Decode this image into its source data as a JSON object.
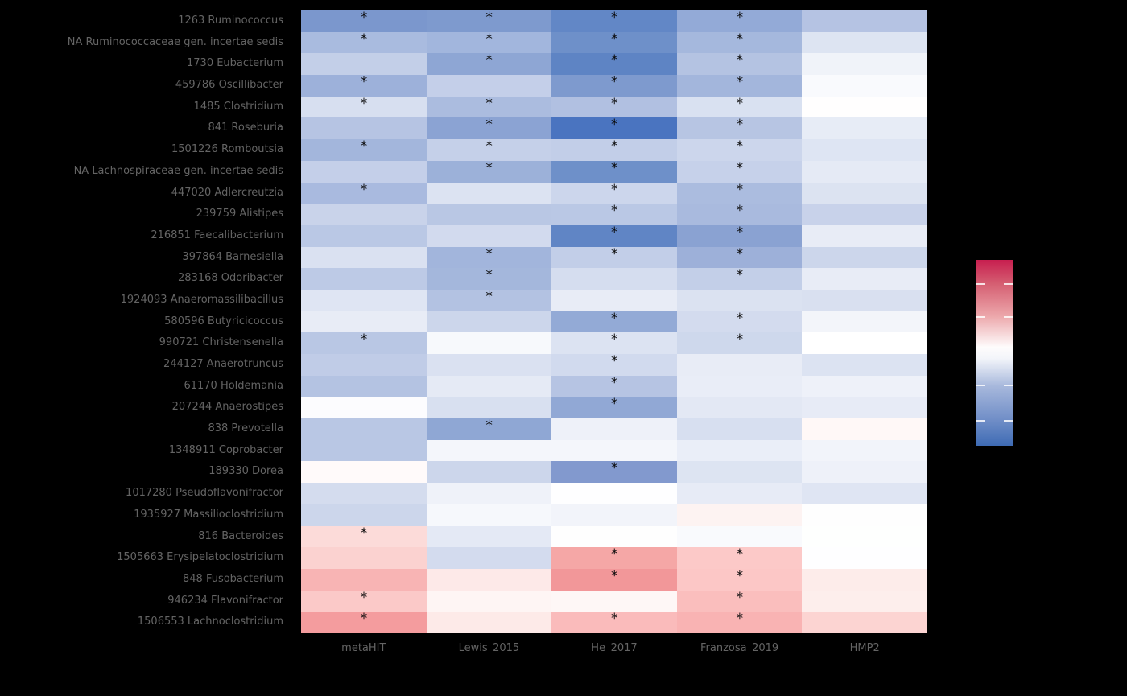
{
  "chart_data": {
    "type": "heatmap",
    "title": "",
    "xlabel": "",
    "ylabel": "",
    "significance_marker": "*",
    "columns": [
      "metaHIT",
      "Lewis_2015",
      "He_2017",
      "Franzosa_2019",
      "HMP2"
    ],
    "rows": [
      "1263 Ruminococcus",
      "NA Ruminococcaceae gen. incertae sedis",
      "1730 Eubacterium",
      "459786 Oscillibacter",
      "1485 Clostridium",
      "841 Roseburia",
      "1501226 Romboutsia",
      "NA Lachnospiraceae gen. incertae sedis",
      "447020 Adlercreutzia",
      "239759 Alistipes",
      "216851 Faecalibacterium",
      "397864 Barnesiella",
      "283168 Odoribacter",
      "1924093 Anaeromassilibacillus",
      "580596 Butyricicoccus",
      "990721 Christensenella",
      "244127 Anaerotruncus",
      "61170 Holdemania",
      "207244 Anaerostipes",
      "838 Prevotella",
      "1348911 Coprobacter",
      "189330 Dorea",
      "1017280 Pseudoflavonifractor",
      "1935927 Massilioclostridium",
      "816 Bacteroides",
      "1505663 Erysipelatoclostridium",
      "848 Fusobacterium",
      "946234 Flavonifractor",
      "1506553 Lachnoclostridium"
    ],
    "cell_colors": [
      [
        "#7b97cd",
        "#7e9ace",
        "#6287c6",
        "#93aad7",
        "#b5c3e3"
      ],
      [
        "#a9bbdf",
        "#a2b6dd",
        "#6e90c9",
        "#a5b8dd",
        "#dde4f2"
      ],
      [
        "#c3cfe8",
        "#8ea6d4",
        "#5e84c4",
        "#b4c3e2",
        "#f0f3f9"
      ],
      [
        "#9db1da",
        "#c4cfe9",
        "#7e9ace",
        "#a3b6dc",
        "#f9fafd"
      ],
      [
        "#d7dff0",
        "#abbcdf",
        "#b1c0e1",
        "#d9e1f1",
        "#fffefe"
      ],
      [
        "#b6c4e3",
        "#8ba3d3",
        "#4a74c0",
        "#b7c5e3",
        "#e7ecf6"
      ],
      [
        "#a3b6dc",
        "#c5d0e9",
        "#c2cee8",
        "#ccd6ec",
        "#dee5f3"
      ],
      [
        "#c4cfe9",
        "#9cb1d9",
        "#6e90c9",
        "#c6d1ea",
        "#e5eaf5"
      ],
      [
        "#a9badf",
        "#dce3f2",
        "#ccd6ec",
        "#abbcdf",
        "#dce3f1"
      ],
      [
        "#c9d3ea",
        "#b9c7e4",
        "#bac8e5",
        "#a9bade",
        "#c8d2ea"
      ],
      [
        "#bac8e5",
        "#d2daee",
        "#6085c5",
        "#8aa2d2",
        "#e8ecf6"
      ],
      [
        "#dae1f1",
        "#a2b5dc",
        "#c2cee8",
        "#9db0d9",
        "#ccd6eb"
      ],
      [
        "#bdcae6",
        "#a4b7dc",
        "#d5ddef",
        "#c3cfe8",
        "#e8ecf6"
      ],
      [
        "#dfe5f3",
        "#b3c2e2",
        "#e8ecf6",
        "#dbe2f1",
        "#d9e0f0"
      ],
      [
        "#e8ecf6",
        "#ccd6eb",
        "#93aad6",
        "#d3dbee",
        "#f3f5fa"
      ],
      [
        "#b9c7e4",
        "#f7f9fc",
        "#dce3f2",
        "#ced8ec",
        "#ffffff"
      ],
      [
        "#c0cce7",
        "#dae1f1",
        "#d1daee",
        "#e8ecf6",
        "#dce3f2"
      ],
      [
        "#b4c3e2",
        "#e5eaf5",
        "#b6c4e3",
        "#e9edf7",
        "#eef1f9"
      ],
      [
        "#fcfcfe",
        "#d8e0f0",
        "#91a8d5",
        "#e3e8f4",
        "#e7ebf6"
      ],
      [
        "#b9c7e4",
        "#8fa7d4",
        "#eef1f9",
        "#d7dff0",
        "#fff8f7"
      ],
      [
        "#b9c7e4",
        "#f4f6fb",
        "#f4f6fb",
        "#eaeef8",
        "#f2f4fa"
      ],
      [
        "#fffafa",
        "#ccd6eb",
        "#8299ce",
        "#dde4f2",
        "#eef1f9"
      ],
      [
        "#d4dcee",
        "#eff2f9",
        "#fefeff",
        "#e7ebf6",
        "#dfe5f3"
      ],
      [
        "#ccd6eb",
        "#f6f8fc",
        "#f2f4fa",
        "#fdf3f2",
        "#fefefe"
      ],
      [
        "#fcdbd9",
        "#e4e9f5",
        "#fefefe",
        "#f9fafd",
        "#fefffe"
      ],
      [
        "#fbd2d0",
        "#d3dbee",
        "#f5a7a6",
        "#fcc9c8",
        "#fefeff"
      ],
      [
        "#f8b4b4",
        "#fde9e8",
        "#f29799",
        "#fcc7c6",
        "#fdecea"
      ],
      [
        "#fbc9c8",
        "#fef5f4",
        "#fef7f6",
        "#fabebd",
        "#fdeeec"
      ],
      [
        "#f49c9e",
        "#fdeae8",
        "#fabbbb",
        "#f9b3b3",
        "#fcd4d2"
      ]
    ],
    "values_estimated_relative_to_legend_max": [
      [
        -0.63,
        -0.62,
        -0.8,
        -0.52,
        -0.34
      ],
      [
        -0.4,
        -0.44,
        -0.74,
        -0.43,
        -0.15
      ],
      [
        -0.28,
        -0.57,
        -0.82,
        -0.35,
        -0.08
      ],
      [
        -0.47,
        -0.27,
        -0.62,
        -0.44,
        -0.03
      ],
      [
        -0.19,
        -0.4,
        -0.37,
        -0.18,
        0.0
      ],
      [
        -0.34,
        -0.59,
        -0.95,
        -0.33,
        -0.11
      ],
      [
        -0.44,
        -0.26,
        -0.28,
        -0.24,
        -0.14
      ],
      [
        -0.27,
        -0.49,
        -0.74,
        -0.25,
        -0.12
      ],
      [
        -0.4,
        -0.16,
        -0.24,
        -0.4,
        -0.16
      ],
      [
        -0.25,
        -0.33,
        -0.32,
        -0.41,
        -0.26
      ],
      [
        -0.32,
        -0.21,
        -0.81,
        -0.6,
        -0.1
      ],
      [
        -0.17,
        -0.45,
        -0.28,
        -0.48,
        -0.24
      ],
      [
        -0.31,
        -0.43,
        -0.2,
        -0.28,
        -0.1
      ],
      [
        -0.15,
        -0.35,
        -0.1,
        -0.17,
        -0.18
      ],
      [
        -0.1,
        -0.24,
        -0.55,
        -0.21,
        -0.05
      ],
      [
        -0.33,
        -0.03,
        -0.15,
        -0.23,
        0.0
      ],
      [
        -0.3,
        -0.17,
        -0.22,
        -0.1,
        -0.15
      ],
      [
        -0.35,
        -0.12,
        -0.34,
        -0.09,
        -0.07
      ],
      [
        -0.01,
        -0.18,
        -0.56,
        -0.13,
        -0.11
      ],
      [
        -0.33,
        -0.57,
        -0.07,
        -0.19,
        0.02
      ],
      [
        -0.33,
        -0.05,
        -0.05,
        -0.09,
        -0.06
      ],
      [
        0.01,
        -0.24,
        -0.66,
        -0.15,
        -0.07
      ],
      [
        -0.22,
        -0.07,
        0.0,
        -0.11,
        -0.15
      ],
      [
        -0.24,
        -0.04,
        -0.06,
        0.03,
        0.0
      ],
      [
        0.33,
        -0.13,
        0.0,
        -0.02,
        0.0
      ],
      [
        0.38,
        -0.21,
        0.7,
        0.45,
        0.0
      ],
      [
        0.6,
        0.17,
        0.78,
        0.46,
        0.15
      ],
      [
        0.44,
        0.08,
        0.06,
        0.52,
        0.14
      ],
      [
        0.76,
        0.16,
        0.55,
        0.6,
        0.34
      ]
    ],
    "significant": [
      [
        true,
        true,
        true,
        true,
        false
      ],
      [
        true,
        true,
        true,
        true,
        false
      ],
      [
        false,
        true,
        true,
        true,
        false
      ],
      [
        true,
        false,
        true,
        true,
        false
      ],
      [
        true,
        true,
        true,
        true,
        false
      ],
      [
        false,
        true,
        true,
        true,
        false
      ],
      [
        true,
        true,
        true,
        true,
        false
      ],
      [
        false,
        true,
        true,
        true,
        false
      ],
      [
        true,
        false,
        true,
        true,
        false
      ],
      [
        false,
        false,
        true,
        true,
        false
      ],
      [
        false,
        false,
        true,
        true,
        false
      ],
      [
        false,
        true,
        true,
        true,
        false
      ],
      [
        false,
        true,
        false,
        true,
        false
      ],
      [
        false,
        true,
        false,
        false,
        false
      ],
      [
        false,
        false,
        true,
        true,
        false
      ],
      [
        true,
        false,
        true,
        true,
        false
      ],
      [
        false,
        false,
        true,
        false,
        false
      ],
      [
        false,
        false,
        true,
        false,
        false
      ],
      [
        false,
        false,
        true,
        false,
        false
      ],
      [
        false,
        true,
        false,
        false,
        false
      ],
      [
        false,
        false,
        false,
        false,
        false
      ],
      [
        false,
        false,
        true,
        false,
        false
      ],
      [
        false,
        false,
        false,
        false,
        false
      ],
      [
        false,
        false,
        false,
        false,
        false
      ],
      [
        true,
        false,
        false,
        false,
        false
      ],
      [
        false,
        false,
        true,
        true,
        false
      ],
      [
        false,
        false,
        true,
        true,
        false
      ],
      [
        true,
        false,
        false,
        true,
        false
      ],
      [
        true,
        false,
        true,
        true,
        false
      ]
    ],
    "legend": {
      "position": "right",
      "orientation": "vertical",
      "tick_labels_visible": false,
      "ticks_fraction_from_top": [
        0.13,
        0.307,
        0.675,
        0.866
      ],
      "gradient_stops": [
        {
          "pos": 0.0,
          "color": "#c71f4f"
        },
        {
          "pos": 0.13,
          "color": "#d55f72"
        },
        {
          "pos": 0.3,
          "color": "#eca6aa"
        },
        {
          "pos": 0.47,
          "color": "#fefcfc"
        },
        {
          "pos": 0.53,
          "color": "#f3f5fa"
        },
        {
          "pos": 0.68,
          "color": "#a7b8dc"
        },
        {
          "pos": 0.87,
          "color": "#6d8cc6"
        },
        {
          "pos": 1.0,
          "color": "#3e6bb4"
        }
      ],
      "high_color": "#c71f4f",
      "mid_color": "#ffffff",
      "low_color": "#3e6bb4"
    },
    "style": {
      "background": "#000000",
      "label_color": "#646464",
      "marker_color": "#0a0a0a"
    }
  }
}
